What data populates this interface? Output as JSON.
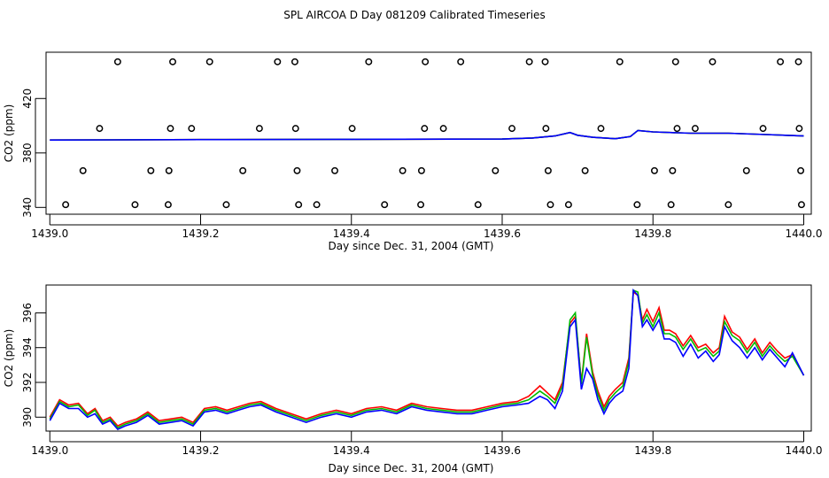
{
  "title": "SPL AIRCOA D  Day 081209  Calibrated Timeseries",
  "colors": {
    "red": "#ff0000",
    "green": "#00bb00",
    "blue": "#0000ff",
    "frame": "#000000"
  },
  "chart_data": [
    {
      "type": "line",
      "title": "",
      "xlabel": "Day since Dec. 31, 2004 (GMT)",
      "ylabel": "CO2 (ppm)",
      "xlim": [
        1438.995,
        1440.01
      ],
      "ylim": [
        335,
        454
      ],
      "xticks": [
        1439.0,
        1439.2,
        1439.4,
        1439.6,
        1439.8,
        1440.0
      ],
      "xtick_labels": [
        "1439.0",
        "1439.2",
        "1439.4",
        "1439.6",
        "1439.8",
        "1440.0"
      ],
      "yticks": [
        340,
        380,
        420
      ],
      "ytick_labels": [
        "340",
        "380",
        "420"
      ],
      "series": [
        {
          "color": "red",
          "x": [
            1439.0,
            1439.2,
            1439.4,
            1439.6,
            1439.64,
            1439.67,
            1439.69,
            1439.7,
            1439.72,
            1439.75,
            1439.77,
            1439.78,
            1439.8,
            1439.85,
            1439.9,
            1439.95,
            1440.0
          ],
          "y": [
            389.5,
            389.8,
            390.0,
            390.2,
            391.0,
            392.5,
            395.0,
            393.0,
            391.5,
            390.5,
            392.0,
            396.5,
            395.5,
            394.5,
            394.5,
            393.5,
            392.5
          ]
        },
        {
          "color": "green",
          "x": [
            1439.0,
            1439.2,
            1439.4,
            1439.6,
            1439.64,
            1439.67,
            1439.69,
            1439.7,
            1439.72,
            1439.75,
            1439.77,
            1439.78,
            1439.8,
            1439.85,
            1439.9,
            1439.95,
            1440.0
          ],
          "y": [
            389.5,
            389.8,
            390.0,
            390.2,
            391.0,
            392.5,
            395.0,
            393.0,
            391.5,
            390.5,
            392.0,
            396.5,
            395.5,
            394.5,
            394.5,
            393.5,
            392.5
          ]
        },
        {
          "color": "blue",
          "x": [
            1439.0,
            1439.2,
            1439.4,
            1439.6,
            1439.64,
            1439.67,
            1439.69,
            1439.7,
            1439.72,
            1439.75,
            1439.77,
            1439.78,
            1439.8,
            1439.85,
            1439.9,
            1439.95,
            1440.0
          ],
          "y": [
            389.5,
            389.8,
            390.0,
            390.2,
            391.0,
            392.5,
            395.0,
            393.0,
            391.5,
            390.5,
            392.0,
            396.5,
            395.5,
            394.5,
            394.5,
            393.5,
            392.5
          ]
        }
      ],
      "markers": {
        "symbol": "open-circle",
        "x": [
          1439.09,
          1439.163,
          1439.212,
          1439.302,
          1439.325,
          1439.423,
          1439.498,
          1439.545,
          1439.636,
          1439.657,
          1439.756,
          1439.83,
          1439.879,
          1439.969,
          1439.993,
          1439.066,
          1439.16,
          1439.188,
          1439.278,
          1439.326,
          1439.401,
          1439.497,
          1439.522,
          1439.613,
          1439.658,
          1439.731,
          1439.832,
          1439.856,
          1439.946,
          1439.994,
          1439.044,
          1439.134,
          1439.158,
          1439.256,
          1439.328,
          1439.378,
          1439.468,
          1439.493,
          1439.591,
          1439.661,
          1439.71,
          1439.802,
          1439.826,
          1439.924,
          1439.996,
          1439.021,
          1439.113,
          1439.157,
          1439.234,
          1439.33,
          1439.354,
          1439.444,
          1439.492,
          1439.568,
          1439.664,
          1439.688,
          1439.779,
          1439.824,
          1439.9,
          1439.997
        ],
        "y": [
          447,
          447,
          447,
          447,
          447,
          447,
          447,
          447,
          447,
          447,
          447,
          447,
          447,
          447,
          447,
          398,
          398,
          398,
          398,
          398,
          398,
          398,
          398,
          398,
          398,
          398,
          398,
          398,
          398,
          398,
          367,
          367,
          367,
          367,
          367,
          367,
          367,
          367,
          367,
          367,
          367,
          367,
          367,
          367,
          367,
          342,
          342,
          342,
          342,
          342,
          342,
          342,
          342,
          342,
          342,
          342,
          342,
          342,
          342,
          342
        ]
      }
    },
    {
      "type": "line",
      "title": "",
      "xlabel": "Day since Dec. 31, 2004 (GMT)",
      "ylabel": "CO2 (ppm)",
      "xlim": [
        1438.995,
        1440.01
      ],
      "ylim": [
        389.2,
        397.6
      ],
      "xticks": [
        1439.0,
        1439.2,
        1439.4,
        1439.6,
        1439.8,
        1440.0
      ],
      "xtick_labels": [
        "1439.0",
        "1439.2",
        "1439.4",
        "1439.6",
        "1439.8",
        "1440.0"
      ],
      "yticks": [
        390,
        392,
        394,
        396
      ],
      "ytick_labels": [
        "390",
        "392",
        "394",
        "396"
      ],
      "series": [
        {
          "color": "red",
          "x": [
            1439.0,
            1439.013,
            1439.025,
            1439.038,
            1439.05,
            1439.06,
            1439.07,
            1439.08,
            1439.09,
            1439.1,
            1439.115,
            1439.13,
            1439.145,
            1439.16,
            1439.175,
            1439.19,
            1439.205,
            1439.22,
            1439.235,
            1439.25,
            1439.265,
            1439.28,
            1439.3,
            1439.32,
            1439.34,
            1439.36,
            1439.38,
            1439.4,
            1439.42,
            1439.44,
            1439.46,
            1439.48,
            1439.5,
            1439.52,
            1439.54,
            1439.56,
            1439.58,
            1439.6,
            1439.62,
            1439.635,
            1439.65,
            1439.66,
            1439.67,
            1439.68,
            1439.69,
            1439.697,
            1439.705,
            1439.712,
            1439.72,
            1439.727,
            1439.735,
            1439.742,
            1439.75,
            1439.76,
            1439.768,
            1439.774,
            1439.78,
            1439.786,
            1439.792,
            1439.8,
            1439.808,
            1439.815,
            1439.822,
            1439.83,
            1439.84,
            1439.85,
            1439.86,
            1439.87,
            1439.88,
            1439.888,
            1439.895,
            1439.905,
            1439.915,
            1439.925,
            1439.935,
            1439.945,
            1439.955,
            1439.965,
            1439.975,
            1439.985,
            1440.0
          ],
          "y": [
            390.0,
            391.0,
            390.7,
            390.8,
            390.2,
            390.5,
            389.8,
            390.0,
            389.5,
            389.7,
            389.9,
            390.3,
            389.8,
            389.9,
            390.0,
            389.7,
            390.5,
            390.6,
            390.4,
            390.6,
            390.8,
            390.9,
            390.5,
            390.2,
            389.9,
            390.2,
            390.4,
            390.2,
            390.5,
            390.6,
            390.4,
            390.8,
            390.6,
            390.5,
            390.4,
            390.4,
            390.6,
            390.8,
            390.9,
            391.2,
            391.8,
            391.4,
            391.0,
            392.0,
            395.4,
            395.8,
            392.0,
            394.8,
            392.6,
            391.5,
            390.6,
            391.2,
            391.6,
            392.0,
            393.4,
            397.2,
            397.0,
            395.6,
            396.2,
            395.5,
            396.3,
            395.0,
            395.0,
            394.8,
            394.1,
            394.7,
            394.0,
            394.2,
            393.7,
            394.0,
            395.8,
            394.9,
            394.6,
            393.9,
            394.5,
            393.7,
            394.3,
            393.8,
            393.4,
            393.6,
            392.4
          ]
        },
        {
          "color": "green",
          "x": [
            1439.0,
            1439.013,
            1439.025,
            1439.038,
            1439.05,
            1439.06,
            1439.07,
            1439.08,
            1439.09,
            1439.1,
            1439.115,
            1439.13,
            1439.145,
            1439.16,
            1439.175,
            1439.19,
            1439.205,
            1439.22,
            1439.235,
            1439.25,
            1439.265,
            1439.28,
            1439.3,
            1439.32,
            1439.34,
            1439.36,
            1439.38,
            1439.4,
            1439.42,
            1439.44,
            1439.46,
            1439.48,
            1439.5,
            1439.52,
            1439.54,
            1439.56,
            1439.58,
            1439.6,
            1439.62,
            1439.635,
            1439.65,
            1439.66,
            1439.67,
            1439.68,
            1439.69,
            1439.697,
            1439.705,
            1439.712,
            1439.72,
            1439.727,
            1439.735,
            1439.742,
            1439.75,
            1439.76,
            1439.768,
            1439.774,
            1439.78,
            1439.786,
            1439.792,
            1439.8,
            1439.808,
            1439.815,
            1439.822,
            1439.83,
            1439.84,
            1439.85,
            1439.86,
            1439.87,
            1439.88,
            1439.888,
            1439.895,
            1439.905,
            1439.915,
            1439.925,
            1439.935,
            1439.945,
            1439.955,
            1439.965,
            1439.975,
            1439.985,
            1440.0
          ],
          "y": [
            389.9,
            390.9,
            390.6,
            390.7,
            390.1,
            390.4,
            389.7,
            389.9,
            389.4,
            389.6,
            389.8,
            390.2,
            389.7,
            389.8,
            389.9,
            389.6,
            390.4,
            390.5,
            390.3,
            390.5,
            390.7,
            390.8,
            390.4,
            390.1,
            389.8,
            390.1,
            390.3,
            390.1,
            390.4,
            390.5,
            390.3,
            390.7,
            390.5,
            390.4,
            390.3,
            390.3,
            390.5,
            390.7,
            390.8,
            391.0,
            391.5,
            391.2,
            390.8,
            391.8,
            395.6,
            396.0,
            391.9,
            394.6,
            392.4,
            391.3,
            390.4,
            391.0,
            391.4,
            391.8,
            393.2,
            397.3,
            397.2,
            395.4,
            395.9,
            395.2,
            396.0,
            394.8,
            394.8,
            394.6,
            393.9,
            394.5,
            393.8,
            394.0,
            393.5,
            393.8,
            395.5,
            394.7,
            394.4,
            393.7,
            394.3,
            393.5,
            394.1,
            393.6,
            393.2,
            393.5,
            392.4
          ]
        },
        {
          "color": "blue",
          "x": [
            1439.0,
            1439.013,
            1439.025,
            1439.038,
            1439.05,
            1439.06,
            1439.07,
            1439.08,
            1439.09,
            1439.1,
            1439.115,
            1439.13,
            1439.145,
            1439.16,
            1439.175,
            1439.19,
            1439.205,
            1439.22,
            1439.235,
            1439.25,
            1439.265,
            1439.28,
            1439.3,
            1439.32,
            1439.34,
            1439.36,
            1439.38,
            1439.4,
            1439.42,
            1439.44,
            1439.46,
            1439.48,
            1439.5,
            1439.52,
            1439.54,
            1439.56,
            1439.58,
            1439.6,
            1439.62,
            1439.635,
            1439.65,
            1439.66,
            1439.67,
            1439.68,
            1439.69,
            1439.697,
            1439.705,
            1439.712,
            1439.72,
            1439.727,
            1439.735,
            1439.742,
            1439.75,
            1439.76,
            1439.768,
            1439.774,
            1439.78,
            1439.786,
            1439.792,
            1439.8,
            1439.808,
            1439.815,
            1439.822,
            1439.83,
            1439.84,
            1439.85,
            1439.86,
            1439.87,
            1439.88,
            1439.888,
            1439.895,
            1439.905,
            1439.915,
            1439.925,
            1439.935,
            1439.945,
            1439.955,
            1439.965,
            1439.975,
            1439.985,
            1440.0
          ],
          "y": [
            389.8,
            390.8,
            390.5,
            390.5,
            390.0,
            390.2,
            389.6,
            389.8,
            389.3,
            389.5,
            389.7,
            390.1,
            389.6,
            389.7,
            389.8,
            389.5,
            390.3,
            390.4,
            390.2,
            390.4,
            390.6,
            390.7,
            390.3,
            390.0,
            389.7,
            390.0,
            390.2,
            390.0,
            390.3,
            390.4,
            390.2,
            390.6,
            390.4,
            390.3,
            390.2,
            390.2,
            390.4,
            390.6,
            390.7,
            390.8,
            391.2,
            391.0,
            390.5,
            391.5,
            395.2,
            395.6,
            391.6,
            392.8,
            392.2,
            391.0,
            390.2,
            390.8,
            391.2,
            391.5,
            392.8,
            397.3,
            397.0,
            395.2,
            395.6,
            395.0,
            395.6,
            394.5,
            394.5,
            394.3,
            393.5,
            394.2,
            393.4,
            393.8,
            393.2,
            393.6,
            395.2,
            394.4,
            394.0,
            393.4,
            394.0,
            393.3,
            393.9,
            393.4,
            392.9,
            393.7,
            392.4
          ]
        }
      ]
    }
  ]
}
